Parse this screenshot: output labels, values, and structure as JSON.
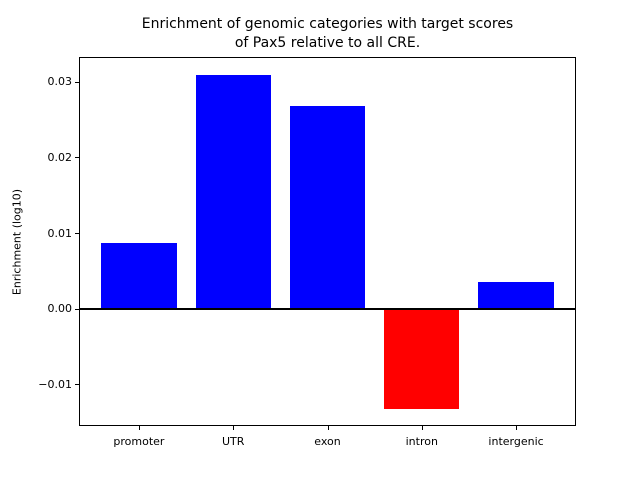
{
  "figure": {
    "background": "#ffffff"
  },
  "chart_data": {
    "type": "bar",
    "title": "Enrichment of genomic categories with target scores\nof Pax5 relative to all CRE.",
    "ylabel": "Enrichment (log10)",
    "xlabel": "",
    "categories": [
      "promoter",
      "UTR",
      "exon",
      "intron",
      "intergenic"
    ],
    "values": [
      0.0087,
      0.0309,
      0.0268,
      -0.0132,
      0.0036
    ],
    "bar_colors": [
      "#0000ff",
      "#0000ff",
      "#0000ff",
      "#ff0000",
      "#0000ff"
    ],
    "positive_color": "#0000ff",
    "negative_color": "#ff0000",
    "axis_color": "#000000",
    "zero_line": true,
    "grid": false,
    "legend": null,
    "ylim": [
      -0.0153,
      0.0332
    ],
    "yticks": [
      0.03,
      0.02,
      0.01,
      0.0,
      -0.01
    ],
    "ytick_labels": [
      "0.03",
      "0.02",
      "0.01",
      "0.00",
      "−0.01"
    ],
    "x_range": [
      -0.625,
      4.625
    ],
    "bar_width": 0.8
  }
}
